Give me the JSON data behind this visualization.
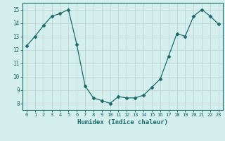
{
  "x": [
    0,
    1,
    2,
    3,
    4,
    5,
    6,
    7,
    8,
    9,
    10,
    11,
    12,
    13,
    14,
    15,
    16,
    17,
    18,
    19,
    20,
    21,
    22,
    23
  ],
  "y": [
    12.3,
    13.0,
    13.8,
    14.5,
    14.7,
    15.0,
    12.4,
    9.3,
    8.4,
    8.2,
    8.0,
    8.5,
    8.4,
    8.4,
    8.6,
    9.2,
    9.8,
    11.5,
    13.2,
    13.0,
    14.5,
    15.0,
    14.5,
    13.9
  ],
  "xlabel": "Humidex (Indice chaleur)",
  "ylim": [
    7.5,
    15.5
  ],
  "xlim": [
    -0.5,
    23.5
  ],
  "yticks": [
    8,
    9,
    10,
    11,
    12,
    13,
    14,
    15
  ],
  "xticks": [
    0,
    1,
    2,
    3,
    4,
    5,
    6,
    7,
    8,
    9,
    10,
    11,
    12,
    13,
    14,
    15,
    16,
    17,
    18,
    19,
    20,
    21,
    22,
    23
  ],
  "line_color": "#1a6b6b",
  "marker_color": "#1a6b6b",
  "bg_color": "#d4efed",
  "grid_color": "#c0d8d4",
  "tick_color": "#1a6b6b",
  "label_color": "#1a6b6b"
}
